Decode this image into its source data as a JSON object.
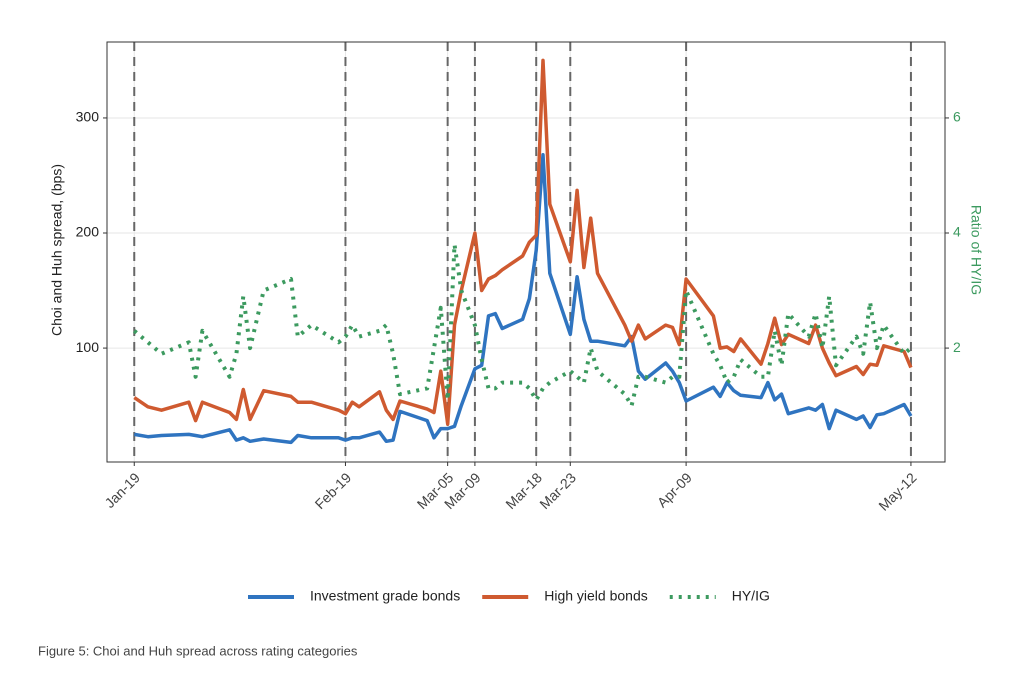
{
  "chart_data": {
    "type": "line",
    "y_label": "Choi and Huh spread, (bps)",
    "y2_label": "Ratio of HY/IG",
    "caption": "Figure 5: Choi and Huh spread across rating categories",
    "x": [
      "01-19",
      "01-21",
      "01-23",
      "01-27",
      "01-28",
      "01-29",
      "02-02",
      "02-03",
      "02-04",
      "02-05",
      "02-07",
      "02-11",
      "02-12",
      "02-14",
      "02-18",
      "02-19",
      "02-20",
      "02-21",
      "02-24",
      "02-25",
      "02-26",
      "02-27",
      "03-02",
      "03-03",
      "03-04",
      "03-05",
      "03-06",
      "03-07",
      "03-09",
      "03-10",
      "03-11",
      "03-12",
      "03-13",
      "03-16",
      "03-17",
      "03-18",
      "03-19",
      "03-20",
      "03-23",
      "03-24",
      "03-25",
      "03-26",
      "03-27",
      "03-31",
      "04-01",
      "04-02",
      "04-03",
      "04-06",
      "04-07",
      "04-08",
      "04-09",
      "04-13",
      "04-14",
      "04-15",
      "04-16",
      "04-17",
      "04-20",
      "04-21",
      "04-22",
      "04-23",
      "04-24",
      "04-27",
      "04-28",
      "04-29",
      "04-30",
      "05-01",
      "05-04",
      "05-05",
      "05-06",
      "05-07",
      "05-08",
      "05-11",
      "05-12"
    ],
    "series": [
      {
        "name": "Investment grade bonds",
        "color": "#2f74c0",
        "style": "solid",
        "values": [
          25,
          23,
          24,
          25,
          24,
          23,
          29,
          20,
          22,
          19,
          21,
          18,
          24,
          22,
          22,
          20,
          22,
          22,
          27,
          19,
          20,
          45,
          37,
          22,
          30,
          30,
          32,
          50,
          82,
          85,
          128,
          130,
          117,
          125,
          143,
          185,
          268,
          165,
          112,
          162,
          125,
          106,
          106,
          102,
          110,
          80,
          73,
          87,
          80,
          70,
          54,
          66,
          58,
          70,
          63,
          59,
          57,
          70,
          55,
          60,
          43,
          48,
          46,
          51,
          30,
          46,
          38,
          41,
          31,
          42,
          43,
          51,
          41
        ]
      },
      {
        "name": "High yield bonds",
        "color": "#cf5a30",
        "style": "solid",
        "values": [
          57,
          49,
          46,
          53,
          37,
          53,
          44,
          38,
          64,
          38,
          63,
          58,
          53,
          53,
          46,
          43,
          53,
          49,
          62,
          46,
          38,
          54,
          47,
          44,
          80,
          34,
          120,
          150,
          200,
          150,
          160,
          163,
          168,
          180,
          192,
          198,
          350,
          225,
          175,
          237,
          170,
          213,
          165,
          120,
          106,
          120,
          108,
          120,
          118,
          103,
          160,
          128,
          100,
          101,
          97,
          108,
          86,
          104,
          126,
          103,
          112,
          104,
          120,
          100,
          87,
          76,
          84,
          77,
          86,
          85,
          102,
          97,
          83
        ]
      },
      {
        "name": "HY/IG",
        "color": "#3c9a5f",
        "style": "dotted",
        "axis": "y2",
        "values": [
          2.3,
          2.1,
          1.9,
          2.1,
          1.5,
          2.3,
          1.5,
          1.9,
          2.9,
          2.0,
          3.0,
          3.2,
          2.2,
          2.4,
          2.1,
          2.2,
          2.4,
          2.2,
          2.3,
          2.4,
          1.9,
          1.2,
          1.3,
          2.0,
          2.7,
          1.1,
          3.8,
          3.0,
          2.4,
          1.8,
          1.3,
          1.3,
          1.4,
          1.4,
          1.3,
          1.1,
          1.3,
          1.4,
          1.6,
          1.5,
          1.4,
          2.0,
          1.6,
          1.2,
          1.0,
          1.5,
          1.5,
          1.4,
          1.5,
          1.5,
          3.0,
          1.9,
          1.7,
          1.4,
          1.5,
          1.8,
          1.5,
          1.5,
          2.3,
          1.7,
          2.6,
          2.2,
          2.6,
          2.0,
          2.9,
          1.7,
          2.2,
          1.9,
          2.8,
          2.0,
          2.4,
          1.9,
          2.0
        ]
      }
    ],
    "xlim": [
      "01-15",
      "05-17"
    ],
    "xticks": [
      {
        "value": "01-19",
        "label": "Jan-19"
      },
      {
        "value": "02-19",
        "label": "Feb-19"
      },
      {
        "value": "03-05",
        "label": "Mar-05"
      },
      {
        "value": "03-09",
        "label": "Mar-09"
      },
      {
        "value": "03-18",
        "label": "Mar-18"
      },
      {
        "value": "03-23",
        "label": "Mar-23"
      },
      {
        "value": "04-09",
        "label": "Apr-09"
      },
      {
        "value": "05-12",
        "label": "May-12"
      }
    ],
    "ylim": [
      1,
      366
    ],
    "yticks": [
      100,
      200,
      300
    ],
    "y2lim": [
      0.02,
      7.32
    ],
    "y2ticks": [
      2,
      4,
      6
    ],
    "y2_color": "#3c9a5f",
    "grid": true,
    "vlines_at_xticks": true,
    "legend": "bottom"
  }
}
